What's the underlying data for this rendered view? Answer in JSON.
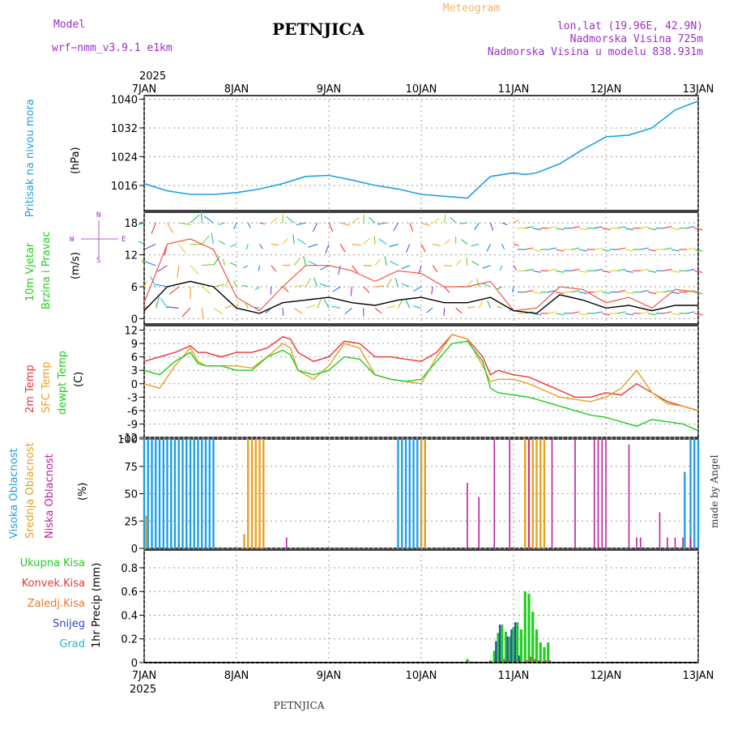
{
  "header": {
    "model_label": "Model",
    "model_name": "wrf−nmm_v3.9.1  e1km",
    "title": "PETNJICA",
    "meteogram_label": "Meteogram",
    "coords": "lon,lat (19.96E, 42.9N)",
    "altitude": "Nadmorska Visina 725m",
    "model_altitude": "Nadmorska Visina u modelu 838.931m"
  },
  "footer": {
    "station": "PETNJICA",
    "credit": "made by Angel"
  },
  "colors": {
    "pressure": "#1ea0e6",
    "wind_label": "#22cc22",
    "temp2m": "#ee3333",
    "sfc": "#e8a020",
    "dew": "#22cc22",
    "high_cloud": "#1ea0e6",
    "mid_cloud": "#e8a020",
    "low_cloud": "#c020a0",
    "header_purple": "#9b30c8",
    "meteogram_label": "#e8b870",
    "snow": "#3344cc",
    "hail": "#22bbbb"
  },
  "chart_data": [
    {
      "type": "line",
      "panel": "pressure",
      "ylabel": "Pritisak na nivou mora",
      "unit": "(hPa)",
      "yticks": [
        1016,
        1024,
        1032,
        1040
      ],
      "ylim": [
        1009,
        1041
      ],
      "x_hours": [
        0,
        6,
        12,
        18,
        24,
        30,
        36,
        42,
        48,
        54,
        60,
        66,
        72,
        78,
        84,
        90,
        96,
        99,
        102,
        108,
        114,
        120,
        126,
        132,
        138,
        144
      ],
      "values": [
        1016.5,
        1014.5,
        1013.5,
        1013.5,
        1014,
        1015,
        1016.5,
        1018.5,
        1018.8,
        1017.5,
        1016,
        1015,
        1013.5,
        1013,
        1012.5,
        1018.5,
        1019.5,
        1019,
        1019.5,
        1022,
        1026,
        1029.5,
        1030,
        1032,
        1037,
        1039.5
      ]
    },
    {
      "type": "line",
      "panel": "wind",
      "ylabel": "10m Vjetar Brzina i Pravac",
      "unit": "(m/s)",
      "compass": {
        "n": "N",
        "s": "S",
        "e": "E",
        "w": "W"
      },
      "yticks": [
        0,
        6,
        12,
        18
      ],
      "ylim": [
        -1,
        20
      ],
      "series": [
        {
          "name": "speed",
          "x_hours": [
            0,
            6,
            12,
            18,
            24,
            30,
            36,
            42,
            48,
            54,
            60,
            66,
            72,
            78,
            84,
            90,
            96,
            102,
            108,
            114,
            120,
            126,
            132,
            138,
            144
          ],
          "values": [
            1.5,
            6,
            7,
            6,
            2,
            1,
            3,
            3.5,
            4,
            3,
            2.5,
            3.5,
            4,
            3,
            3,
            4,
            1.5,
            1,
            4.5,
            3.5,
            2,
            2.5,
            1.5,
            2.5,
            2.5
          ]
        },
        {
          "name": "gust",
          "x_hours": [
            0,
            6,
            12,
            18,
            24,
            30,
            36,
            42,
            48,
            54,
            60,
            66,
            72,
            78,
            84,
            90,
            96,
            102,
            108,
            114,
            120,
            126,
            132,
            138,
            144
          ],
          "values": [
            3,
            14,
            15,
            13,
            4,
            1.5,
            6,
            10,
            10,
            9,
            7,
            9,
            8.5,
            6,
            6,
            7,
            1.5,
            2,
            6,
            5.5,
            3,
            4,
            2,
            5.5,
            5
          ]
        }
      ]
    },
    {
      "type": "line",
      "panel": "temperature",
      "yticks": [
        -12,
        -9,
        -6,
        -3,
        0,
        3,
        6,
        9,
        12
      ],
      "ylim": [
        -12,
        13
      ],
      "series": [
        {
          "name": "2m Temp",
          "x_hours": [
            0,
            4,
            8,
            12,
            14,
            16,
            20,
            24,
            28,
            32,
            36,
            38,
            40,
            44,
            48,
            52,
            56,
            60,
            64,
            68,
            72,
            76,
            80,
            84,
            88,
            90,
            92,
            96,
            100,
            104,
            108,
            112,
            116,
            120,
            124,
            128,
            132,
            136,
            140,
            144
          ],
          "values": [
            5,
            6,
            7,
            8.5,
            7,
            7,
            6,
            7,
            7,
            8,
            10.5,
            10,
            7,
            5,
            6,
            9.5,
            9,
            6,
            6,
            5.5,
            5,
            7,
            11,
            10,
            6,
            2,
            3,
            2,
            1.5,
            0,
            -1.5,
            -3,
            -3,
            -2,
            -2.5,
            0,
            -2,
            -4,
            -5,
            -6
          ]
        },
        {
          "name": "SFC Temp",
          "x_hours": [
            0,
            4,
            8,
            12,
            14,
            16,
            20,
            24,
            28,
            32,
            36,
            38,
            40,
            44,
            48,
            52,
            56,
            60,
            64,
            68,
            72,
            76,
            80,
            84,
            88,
            90,
            92,
            96,
            100,
            104,
            108,
            112,
            116,
            120,
            124,
            128,
            132,
            136,
            140,
            144
          ],
          "values": [
            0,
            -1,
            4,
            8,
            5,
            4,
            4,
            4,
            3.5,
            6,
            9,
            8,
            3,
            1,
            4,
            9,
            8,
            2,
            1,
            0.5,
            0,
            6,
            11,
            10,
            4,
            0.5,
            1,
            1,
            0,
            -1.5,
            -3,
            -3.5,
            -4,
            -3,
            -1,
            3,
            -2,
            -4.5,
            -5,
            -6
          ]
        },
        {
          "name": "dewpt Temp",
          "x_hours": [
            0,
            4,
            8,
            12,
            14,
            16,
            20,
            24,
            28,
            32,
            36,
            38,
            40,
            44,
            48,
            52,
            56,
            60,
            64,
            68,
            72,
            76,
            80,
            84,
            88,
            90,
            92,
            96,
            100,
            104,
            108,
            112,
            116,
            120,
            124,
            128,
            132,
            136,
            140,
            144
          ],
          "values": [
            3,
            2,
            5,
            7,
            4.5,
            4,
            4,
            3,
            3,
            6,
            7.5,
            6.5,
            3,
            2,
            3,
            6,
            5.5,
            2,
            1,
            0.5,
            1,
            5,
            9,
            9.5,
            5,
            -1,
            -2,
            -2.5,
            -3,
            -4,
            -5,
            -6,
            -7,
            -7.5,
            -8.5,
            -9.5,
            -8,
            -8.5,
            -9,
            -10.5
          ]
        }
      ],
      "labels": {
        "t2m": "2m Temp",
        "sfc": "SFC Temp",
        "dew": "dewpt Temp",
        "unit": "(C)"
      }
    },
    {
      "type": "bar",
      "panel": "cloud",
      "yticks": [
        0,
        25,
        50,
        75,
        100
      ],
      "ylim": [
        0,
        100
      ],
      "series": [
        {
          "name": "Visoka Oblacnost",
          "segments": [
            [
              0,
              18,
              100
            ],
            [
              66,
              73,
              100
            ],
            [
              142,
              144,
              100
            ]
          ],
          "extra": [
            [
              140.5,
              70
            ]
          ]
        },
        {
          "name": "Srednja Oblacnost",
          "segments": [
            [
              27,
              31,
              100
            ],
            [
              72,
              73,
              100
            ],
            [
              99,
              104,
              100
            ]
          ],
          "extra": [
            [
              0.5,
              30
            ],
            [
              26,
              13
            ]
          ]
        },
        {
          "name": "Niska Oblacnost",
          "bars": [
            [
              37,
              10
            ],
            [
              84,
              60
            ],
            [
              87,
              47
            ],
            [
              91,
              100
            ],
            [
              95,
              100
            ],
            [
              100,
              100
            ],
            [
              106,
              100
            ],
            [
              112,
              100
            ],
            [
              117,
              100
            ],
            [
              118,
              100
            ],
            [
              119,
              100
            ],
            [
              120,
              100
            ],
            [
              126,
              95
            ],
            [
              128,
              10
            ],
            [
              129,
              10
            ],
            [
              134,
              33
            ],
            [
              136,
              10
            ],
            [
              138,
              10
            ],
            [
              140,
              10
            ],
            [
              142,
              10
            ]
          ]
        }
      ],
      "labels": {
        "high": "Visoka Oblacnost",
        "mid": "Srednja Oblacnost",
        "low": "Niska Oblacnost",
        "unit": "(%)"
      }
    },
    {
      "type": "bar",
      "panel": "precip",
      "ylabel": "1hr Precip (mm)",
      "yticks": [
        0,
        0.2,
        0.4,
        0.6,
        0.8
      ],
      "ylim": [
        0,
        0.95
      ],
      "bars_hours": [
        84,
        90,
        91,
        92,
        93,
        94,
        95,
        96,
        97,
        98,
        99,
        100,
        101,
        102,
        103,
        104,
        105
      ],
      "total": [
        0.03,
        0.02,
        0.1,
        0.25,
        0.32,
        0.26,
        0.22,
        0.3,
        0.34,
        0.28,
        0.6,
        0.58,
        0.43,
        0.28,
        0.17,
        0.13,
        0.17
      ],
      "convective": [
        0.01,
        0,
        0,
        0.02,
        0.03,
        0.01,
        0.02,
        0.03,
        0.02,
        0,
        0.02,
        0.05,
        0.03,
        0.02,
        0.01,
        0.02,
        0.02
      ],
      "frozen": [
        0,
        0.01,
        0,
        0,
        0,
        0,
        0,
        0,
        0,
        0,
        0,
        0,
        0,
        0,
        0,
        0,
        0
      ],
      "snow": [
        0,
        0,
        0,
        0.18,
        0.32,
        0,
        0.22,
        0.28,
        0.34,
        0.06,
        0,
        0,
        0,
        0,
        0,
        0,
        0
      ],
      "hail": [
        0,
        0,
        0,
        0,
        0,
        0,
        0,
        0,
        0,
        0,
        0,
        0,
        0,
        0,
        0,
        0,
        0
      ],
      "legend": {
        "total": "Ukupna Kisa",
        "convective": "Konvek.Kisa",
        "frozen": "Zaledj.Kisa",
        "snow": "Snijeg",
        "hail": "Grad"
      }
    }
  ],
  "time_axis": {
    "year": "2025",
    "dates": [
      "7JAN",
      "8JAN",
      "9JAN",
      "10JAN",
      "11JAN",
      "12JAN",
      "13JAN"
    ]
  }
}
